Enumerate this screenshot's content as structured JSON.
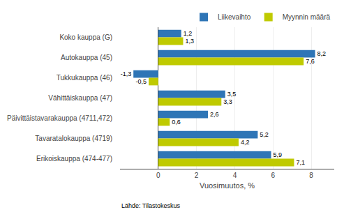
{
  "chart_data": {
    "type": "bar",
    "orientation": "horizontal",
    "categories": [
      "Koko kauppa (G)",
      "Autokauppa (45)",
      "Tukkukauppa (46)",
      "Vähittäiskauppa (47)",
      "Päivittäistavarakauppa (4711,472)",
      "Tavaratalokauppa (4719)",
      "Erikoiskauppa (474-477)"
    ],
    "series": [
      {
        "name": "Liikevaihto",
        "color": "#2E75B6",
        "values": [
          1.2,
          8.2,
          -1.3,
          3.5,
          2.6,
          5.2,
          5.9
        ],
        "value_labels": [
          "1,2",
          "8,2",
          "-1,3",
          "3,5",
          "2,6",
          "5,2",
          "5,9"
        ]
      },
      {
        "name": "Myynnin määrä",
        "color": "#BFCA00",
        "values": [
          1.3,
          7.6,
          -0.5,
          3.3,
          0.6,
          4.2,
          7.1
        ],
        "value_labels": [
          "1,3",
          "7,6",
          "-0,5",
          "3,3",
          "0,6",
          "4,2",
          "7,1"
        ]
      }
    ],
    "xlabel": "Vuosimuutos, %",
    "xlim": [
      -2.0,
      9.2
    ],
    "xticks": [
      0,
      2,
      4,
      6,
      8
    ],
    "grid": true,
    "legend": "upper right",
    "data_labels": true,
    "annotation": "Lähde: Tilastokeskus"
  }
}
